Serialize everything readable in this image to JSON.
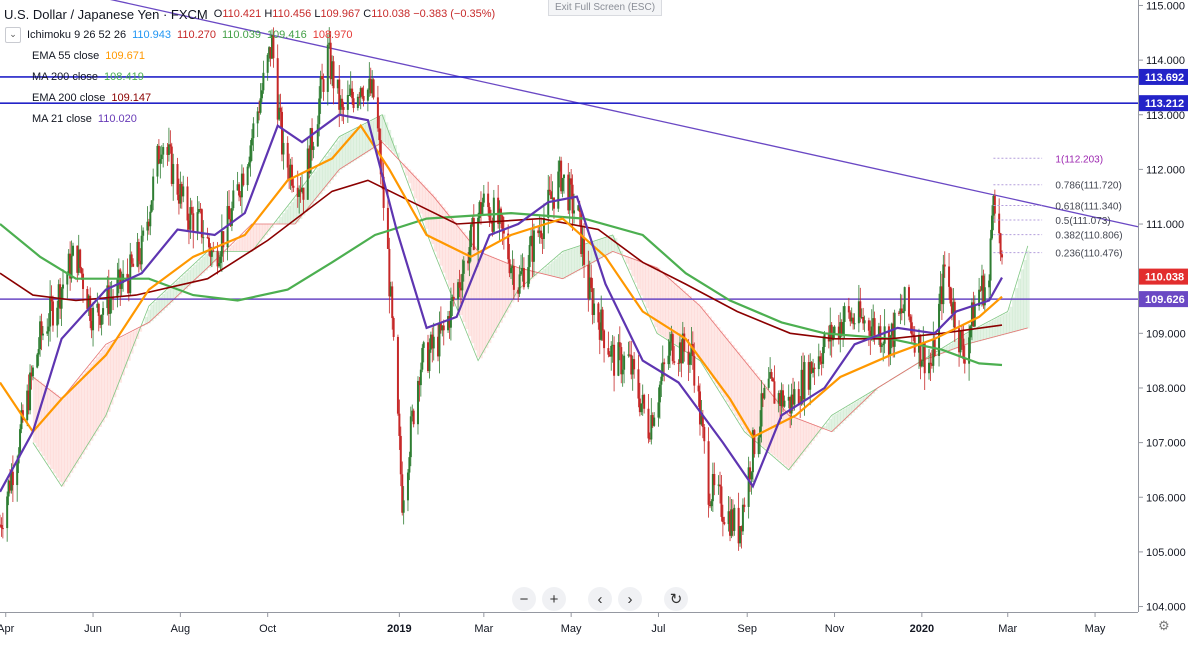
{
  "header": {
    "symbol": "U.S. Dollar / Japanese Yen · FXCM",
    "open_label": "O",
    "open": "110.421",
    "high_label": "H",
    "high": "110.456",
    "low_label": "L",
    "low": "109.967",
    "close_label": "C",
    "close": "110.038",
    "change": "−0.383 (−0.35%)",
    "exit_fullscreen": "Exit Full Screen (ESC)",
    "collapse_icon": "chevron-down-icon"
  },
  "legend": [
    {
      "name": "Ichimoku 9 26 52 26",
      "values": [
        {
          "v": "110.943",
          "color": "#2196f3"
        },
        {
          "v": "110.270",
          "color": "#c62828"
        },
        {
          "v": "110.039",
          "color": "#43a047"
        },
        {
          "v": "109.416",
          "color": "#43a047"
        },
        {
          "v": "108.970",
          "color": "#e53935"
        }
      ]
    },
    {
      "name": "EMA 55 close",
      "values": [
        {
          "v": "109.671",
          "color": "#ff9800"
        }
      ]
    },
    {
      "name": "MA 200 close",
      "values": [
        {
          "v": "108.419",
          "color": "#4caf50"
        }
      ]
    },
    {
      "name": "EMA 200 close",
      "values": [
        {
          "v": "109.147",
          "color": "#8b0000"
        }
      ]
    },
    {
      "name": "MA 21 close",
      "values": [
        {
          "v": "110.020",
          "color": "#673ab7"
        }
      ]
    }
  ],
  "toolbar": {
    "zoom_out_icon": "minus-icon",
    "zoom_out": "−",
    "zoom_in_icon": "plus-icon",
    "zoom_in": "+",
    "scroll_left_icon": "chevron-left-icon",
    "scroll_left": "‹",
    "scroll_right_icon": "chevron-right-icon",
    "scroll_right": "›",
    "reset_icon": "reset-icon",
    "reset": "↻",
    "settings_icon": "gear-icon",
    "settings": "⚙"
  },
  "chart_data": {
    "type": "candlestick",
    "ylim": [
      103.9,
      115.1
    ],
    "y_ticks": [
      "104.000",
      "105.000",
      "106.000",
      "107.000",
      "108.000",
      "109.000",
      "110.000",
      "111.000",
      "112.000",
      "113.000",
      "114.000",
      "115.000"
    ],
    "x_range": [
      "2018-03-28",
      "2020-05-31"
    ],
    "x_ticks": [
      {
        "date": "2018-04-01",
        "label": "Apr"
      },
      {
        "date": "2018-06-01",
        "label": "Jun"
      },
      {
        "date": "2018-08-01",
        "label": "Aug"
      },
      {
        "date": "2018-10-01",
        "label": "Oct"
      },
      {
        "date": "2019-01-01",
        "label": "2019",
        "bold": true
      },
      {
        "date": "2019-03-01",
        "label": "Mar"
      },
      {
        "date": "2019-05-01",
        "label": "May"
      },
      {
        "date": "2019-07-01",
        "label": "Jul"
      },
      {
        "date": "2019-09-01",
        "label": "Sep"
      },
      {
        "date": "2019-11-01",
        "label": "Nov"
      },
      {
        "date": "2020-01-01",
        "label": "2020",
        "bold": true
      },
      {
        "date": "2020-03-01",
        "label": "Mar"
      },
      {
        "date": "2020-05-01",
        "label": "May"
      }
    ],
    "price_path": [
      [
        "2018-03-28",
        105.5
      ],
      [
        "2018-04-10",
        107.0
      ],
      [
        "2018-04-25",
        108.9
      ],
      [
        "2018-05-20",
        110.5
      ],
      [
        "2018-06-01",
        109.3
      ],
      [
        "2018-06-25",
        110.0
      ],
      [
        "2018-07-05",
        110.5
      ],
      [
        "2018-07-19",
        112.6
      ],
      [
        "2018-08-05",
        111.2
      ],
      [
        "2018-08-15",
        111.0
      ],
      [
        "2018-08-24",
        110.4
      ],
      [
        "2018-09-05",
        111.1
      ],
      [
        "2018-09-20",
        112.6
      ],
      [
        "2018-10-04",
        114.3
      ],
      [
        "2018-10-12",
        112.2
      ],
      [
        "2018-10-26",
        111.7
      ],
      [
        "2018-11-12",
        114.1
      ],
      [
        "2018-11-22",
        113.0
      ],
      [
        "2018-12-05",
        113.6
      ],
      [
        "2018-12-15",
        113.3
      ],
      [
        "2018-12-24",
        110.4
      ],
      [
        "2019-01-03",
        106.0
      ],
      [
        "2019-01-15",
        108.4
      ],
      [
        "2019-02-01",
        109.0
      ],
      [
        "2019-02-28",
        111.4
      ],
      [
        "2019-03-10",
        111.1
      ],
      [
        "2019-03-25",
        109.9
      ],
      [
        "2019-04-10",
        111.0
      ],
      [
        "2019-04-24",
        111.9
      ],
      [
        "2019-05-06",
        111.1
      ],
      [
        "2019-05-13",
        109.8
      ],
      [
        "2019-05-31",
        108.5
      ],
      [
        "2019-06-10",
        108.5
      ],
      [
        "2019-06-24",
        107.3
      ],
      [
        "2019-07-10",
        108.8
      ],
      [
        "2019-07-25",
        108.6
      ],
      [
        "2019-08-05",
        106.2
      ],
      [
        "2019-08-26",
        105.4
      ],
      [
        "2019-09-05",
        106.9
      ],
      [
        "2019-09-15",
        108.0
      ],
      [
        "2019-10-01",
        107.7
      ],
      [
        "2019-10-20",
        108.6
      ],
      [
        "2019-11-08",
        109.3
      ],
      [
        "2019-11-25",
        109.2
      ],
      [
        "2019-12-10",
        108.9
      ],
      [
        "2019-12-20",
        109.5
      ],
      [
        "2019-12-31",
        108.7
      ],
      [
        "2020-01-08",
        108.4
      ],
      [
        "2020-01-17",
        110.2
      ],
      [
        "2020-01-30",
        108.6
      ],
      [
        "2020-02-10",
        109.8
      ],
      [
        "2020-02-17",
        109.9
      ],
      [
        "2020-02-20",
        111.8
      ],
      [
        "2020-02-25",
        110.4
      ],
      [
        "2020-02-26",
        110.04
      ]
    ],
    "ma200": [
      [
        "2018-03-28",
        111.0
      ],
      [
        "2018-04-25",
        110.4
      ],
      [
        "2018-05-20",
        110.0
      ],
      [
        "2018-07-10",
        110.0
      ],
      [
        "2018-08-10",
        109.7
      ],
      [
        "2018-09-10",
        109.6
      ],
      [
        "2018-10-15",
        109.8
      ],
      [
        "2018-11-15",
        110.3
      ],
      [
        "2018-12-15",
        110.8
      ],
      [
        "2019-01-20",
        111.1
      ],
      [
        "2019-03-20",
        111.2
      ],
      [
        "2019-05-10",
        111.1
      ],
      [
        "2019-06-20",
        110.8
      ],
      [
        "2019-07-20",
        110.1
      ],
      [
        "2019-08-20",
        109.6
      ],
      [
        "2019-09-25",
        109.2
      ],
      [
        "2019-10-25",
        109.0
      ],
      [
        "2019-12-10",
        108.9
      ],
      [
        "2020-01-15",
        108.7
      ],
      [
        "2020-02-10",
        108.45
      ],
      [
        "2020-02-26",
        108.42
      ]
    ],
    "ema200": [
      [
        "2018-03-28",
        110.1
      ],
      [
        "2018-04-20",
        109.7
      ],
      [
        "2018-05-20",
        109.6
      ],
      [
        "2018-07-01",
        109.7
      ],
      [
        "2018-08-20",
        110.0
      ],
      [
        "2018-10-01",
        110.7
      ],
      [
        "2018-11-15",
        111.6
      ],
      [
        "2018-12-10",
        111.8
      ],
      [
        "2019-01-10",
        111.4
      ],
      [
        "2019-02-10",
        111.0
      ],
      [
        "2019-04-10",
        111.1
      ],
      [
        "2019-05-20",
        110.9
      ],
      [
        "2019-06-20",
        110.3
      ],
      [
        "2019-07-20",
        109.9
      ],
      [
        "2019-08-25",
        109.4
      ],
      [
        "2019-10-01",
        109.0
      ],
      [
        "2019-11-01",
        108.9
      ],
      [
        "2019-12-10",
        108.9
      ],
      [
        "2020-01-15",
        109.0
      ],
      [
        "2020-02-26",
        109.15
      ]
    ],
    "ema55": [
      [
        "2018-03-28",
        108.1
      ],
      [
        "2018-04-20",
        107.2
      ],
      [
        "2018-05-10",
        107.8
      ],
      [
        "2018-06-10",
        108.6
      ],
      [
        "2018-07-10",
        109.8
      ],
      [
        "2018-08-10",
        110.4
      ],
      [
        "2018-09-15",
        110.8
      ],
      [
        "2018-10-15",
        111.8
      ],
      [
        "2018-11-15",
        112.2
      ],
      [
        "2018-12-05",
        112.8
      ],
      [
        "2018-12-25",
        112.0
      ],
      [
        "2019-01-20",
        110.8
      ],
      [
        "2019-02-20",
        110.4
      ],
      [
        "2019-03-20",
        110.8
      ],
      [
        "2019-04-25",
        111.1
      ],
      [
        "2019-05-25",
        110.4
      ],
      [
        "2019-06-20",
        109.4
      ],
      [
        "2019-07-20",
        108.9
      ],
      [
        "2019-08-20",
        107.8
      ],
      [
        "2019-09-05",
        107.1
      ],
      [
        "2019-10-05",
        107.5
      ],
      [
        "2019-11-05",
        108.2
      ],
      [
        "2019-12-10",
        108.6
      ],
      [
        "2020-01-10",
        108.9
      ],
      [
        "2020-02-10",
        109.3
      ],
      [
        "2020-02-26",
        109.67
      ]
    ],
    "ma21": [
      [
        "2018-03-28",
        106.1
      ],
      [
        "2018-04-20",
        107.2
      ],
      [
        "2018-05-10",
        108.9
      ],
      [
        "2018-06-10",
        109.8
      ],
      [
        "2018-07-05",
        110.1
      ],
      [
        "2018-07-30",
        110.9
      ],
      [
        "2018-08-25",
        110.8
      ],
      [
        "2018-09-15",
        111.2
      ],
      [
        "2018-10-08",
        112.8
      ],
      [
        "2018-10-25",
        112.5
      ],
      [
        "2018-11-20",
        113.0
      ],
      [
        "2018-12-10",
        112.9
      ],
      [
        "2018-12-30",
        110.9
      ],
      [
        "2019-01-20",
        109.1
      ],
      [
        "2019-02-10",
        109.3
      ],
      [
        "2019-03-05",
        110.8
      ],
      [
        "2019-03-25",
        111.0
      ],
      [
        "2019-04-15",
        111.4
      ],
      [
        "2019-05-05",
        111.5
      ],
      [
        "2019-05-25",
        109.9
      ],
      [
        "2019-06-20",
        108.5
      ],
      [
        "2019-07-15",
        108.1
      ],
      [
        "2019-08-15",
        107.0
      ],
      [
        "2019-09-05",
        106.2
      ],
      [
        "2019-09-25",
        107.5
      ],
      [
        "2019-10-25",
        108.0
      ],
      [
        "2019-11-15",
        108.8
      ],
      [
        "2019-12-15",
        109.1
      ],
      [
        "2020-01-10",
        109.0
      ],
      [
        "2020-01-25",
        109.4
      ],
      [
        "2020-02-17",
        109.6
      ],
      [
        "2020-02-26",
        110.02
      ]
    ],
    "ichimoku_span_a": [
      [
        "2018-04-20",
        107.0
      ],
      [
        "2018-05-10",
        106.2
      ],
      [
        "2018-06-10",
        107.5
      ],
      [
        "2018-07-10",
        109.5
      ],
      [
        "2018-08-20",
        110.5
      ],
      [
        "2018-09-20",
        110.5
      ],
      [
        "2018-10-20",
        111.5
      ],
      [
        "2018-11-20",
        112.6
      ],
      [
        "2018-12-20",
        113.0
      ],
      [
        "2019-01-25",
        110.5
      ],
      [
        "2019-02-25",
        108.5
      ],
      [
        "2019-03-25",
        109.8
      ],
      [
        "2019-04-25",
        110.5
      ],
      [
        "2019-05-30",
        110.8
      ],
      [
        "2019-06-30",
        109.0
      ],
      [
        "2019-07-30",
        108.5
      ],
      [
        "2019-08-30",
        107.2
      ],
      [
        "2019-09-30",
        106.5
      ],
      [
        "2019-10-30",
        107.5
      ],
      [
        "2019-12-01",
        108.0
      ],
      [
        "2020-01-01",
        108.5
      ],
      [
        "2020-02-01",
        109.0
      ],
      [
        "2020-03-01",
        109.4
      ],
      [
        "2020-03-15",
        110.6
      ]
    ],
    "ichimoku_span_b": [
      [
        "2018-04-20",
        108.2
      ],
      [
        "2018-05-10",
        107.8
      ],
      [
        "2018-06-10",
        108.8
      ],
      [
        "2018-07-10",
        109.2
      ],
      [
        "2018-08-20",
        110.2
      ],
      [
        "2018-09-20",
        111.0
      ],
      [
        "2018-10-20",
        111.0
      ],
      [
        "2018-11-20",
        112.0
      ],
      [
        "2018-12-20",
        112.5
      ],
      [
        "2019-01-25",
        111.5
      ],
      [
        "2019-02-25",
        110.5
      ],
      [
        "2019-03-25",
        110.2
      ],
      [
        "2019-04-25",
        110.0
      ],
      [
        "2019-05-30",
        110.5
      ],
      [
        "2019-06-30",
        110.2
      ],
      [
        "2019-07-30",
        109.5
      ],
      [
        "2019-08-30",
        108.5
      ],
      [
        "2019-09-30",
        107.5
      ],
      [
        "2019-10-30",
        107.2
      ],
      [
        "2019-12-01",
        108.0
      ],
      [
        "2020-01-01",
        108.5
      ],
      [
        "2020-02-01",
        108.8
      ],
      [
        "2020-03-01",
        109.0
      ],
      [
        "2020-03-15",
        109.1
      ]
    ],
    "horizontal_lines": [
      {
        "value": 113.692,
        "color": "#2323c8",
        "label": "113.692"
      },
      {
        "value": 113.212,
        "color": "#2323c8",
        "label": "113.212"
      },
      {
        "value": 109.626,
        "color": "#6a48c4",
        "label": "109.626"
      }
    ],
    "trend_line": {
      "from": [
        "2018-05-20",
        115.25
      ],
      "to": [
        "2020-05-31",
        110.95
      ],
      "color": "#6a48c4"
    },
    "fibonacci": {
      "start_date": "2020-02-20",
      "end_date": "2020-03-25",
      "levels": [
        {
          "ratio": "1",
          "price": "112.203"
        },
        {
          "ratio": "0.786",
          "price": "111.720"
        },
        {
          "ratio": "0.618",
          "price": "111.340"
        },
        {
          "ratio": "0.5",
          "price": "111.073"
        },
        {
          "ratio": "0.382",
          "price": "110.806"
        },
        {
          "ratio": "0.236",
          "price": "110.476"
        }
      ]
    },
    "last_price": {
      "value": 110.038,
      "label": "110.038",
      "color": "#e22d2d"
    }
  }
}
